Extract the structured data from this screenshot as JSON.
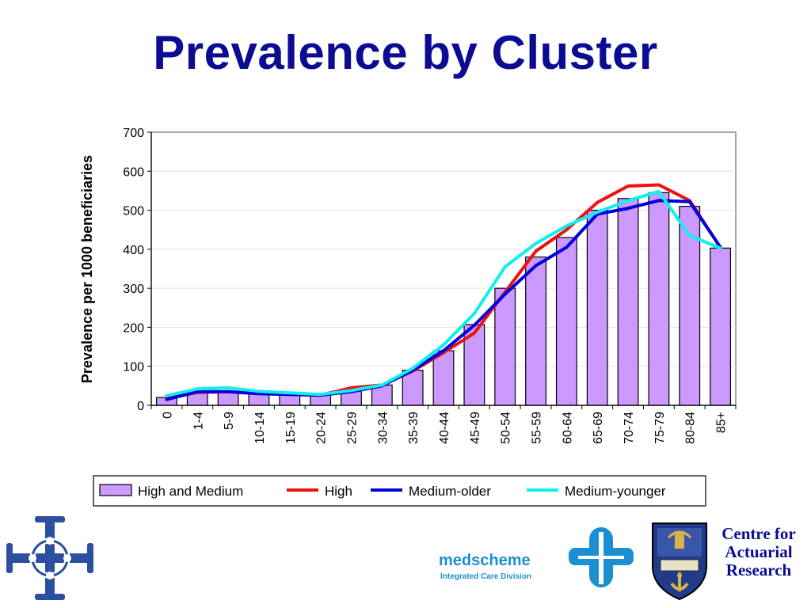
{
  "slide": {
    "title": "Prevalence by Cluster"
  },
  "chart_data": {
    "type": "bar",
    "title": "",
    "xlabel": "",
    "ylabel": "Prevalence per 1000 beneficiaries",
    "ylim": [
      0,
      700
    ],
    "yticks": [
      0,
      100,
      200,
      300,
      400,
      500,
      600,
      700
    ],
    "grid": true,
    "legend_position": "bottom",
    "categories": [
      "0",
      "1-4",
      "5-9",
      "10-14",
      "15-19",
      "20-24",
      "25-29",
      "30-34",
      "35-39",
      "40-44",
      "45-49",
      "50-54",
      "55-59",
      "60-64",
      "65-69",
      "70-74",
      "75-79",
      "80-84",
      "85+"
    ],
    "series": [
      {
        "name": "High and Medium",
        "kind": "bar",
        "color": "#cc99ff",
        "values": [
          20,
          33,
          35,
          30,
          28,
          26,
          38,
          52,
          90,
          140,
          207,
          300,
          380,
          430,
          500,
          530,
          545,
          510,
          403
        ]
      },
      {
        "name": "High",
        "kind": "line",
        "color": "#ee1111",
        "values": [
          18,
          33,
          35,
          30,
          28,
          26,
          45,
          52,
          88,
          135,
          185,
          290,
          395,
          450,
          520,
          562,
          565,
          525,
          405
        ]
      },
      {
        "name": "Medium-older",
        "kind": "line",
        "color": "#0000dd",
        "values": [
          15,
          35,
          35,
          30,
          28,
          26,
          35,
          50,
          90,
          140,
          205,
          285,
          358,
          405,
          490,
          505,
          525,
          522,
          405
        ]
      },
      {
        "name": "Medium-younger",
        "kind": "line",
        "color": "#11eeee",
        "values": [
          25,
          42,
          45,
          36,
          32,
          28,
          38,
          52,
          95,
          155,
          235,
          355,
          415,
          460,
          495,
          525,
          548,
          435,
          403
        ]
      }
    ]
  },
  "logos": {
    "medscheme_name": "medscheme",
    "medscheme_sub": "Integrated Care Division",
    "car_line1": "Centre for",
    "car_line2": "Actuarial",
    "car_line3": "Research"
  },
  "colors": {
    "title": "#0c0c92",
    "medscheme": "#1c8fd1",
    "cross": "#2c4fa0"
  }
}
